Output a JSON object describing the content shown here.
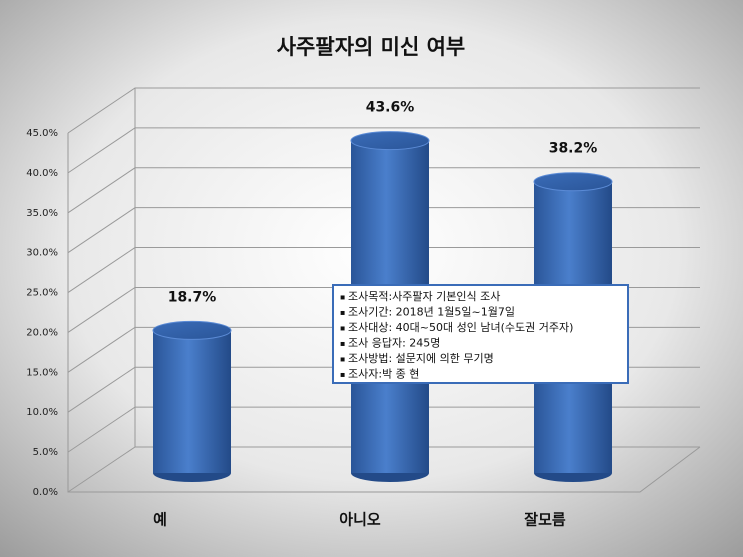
{
  "chart_data": {
    "type": "bar",
    "title": "사주팔자의 미신 여부",
    "categories": [
      "예",
      "아니오",
      "잘모름"
    ],
    "values": [
      18.7,
      43.6,
      38.2
    ],
    "value_labels": [
      "18.7%",
      "43.6%",
      "38.2%"
    ],
    "color": "#3566b0",
    "ylim": [
      0,
      45
    ],
    "yticks": [
      {
        "value": 0,
        "label": "0.0%"
      },
      {
        "value": 5,
        "label": "5.0%"
      },
      {
        "value": 10,
        "label": "10.0%"
      },
      {
        "value": 15,
        "label": "15.0%"
      },
      {
        "value": 20,
        "label": "20.0%"
      },
      {
        "value": 25,
        "label": "25.0%"
      },
      {
        "value": 30,
        "label": "30.0%"
      },
      {
        "value": 35,
        "label": "35.0%"
      },
      {
        "value": 40,
        "label": "40.0%"
      },
      {
        "value": 45,
        "label": "45.0%"
      }
    ],
    "grid": true,
    "annotations": [
      "조사목적:사주팔자 기본인식 조사",
      "조사기간: 2018년 1월5일~1월7일",
      "조사대상: 40대~50대 성인 남녀(수도권 거주자)",
      "조사 응답자: 245명",
      "조사방법: 설문지에 의한 무기명",
      "조사자:박 종 현"
    ]
  }
}
